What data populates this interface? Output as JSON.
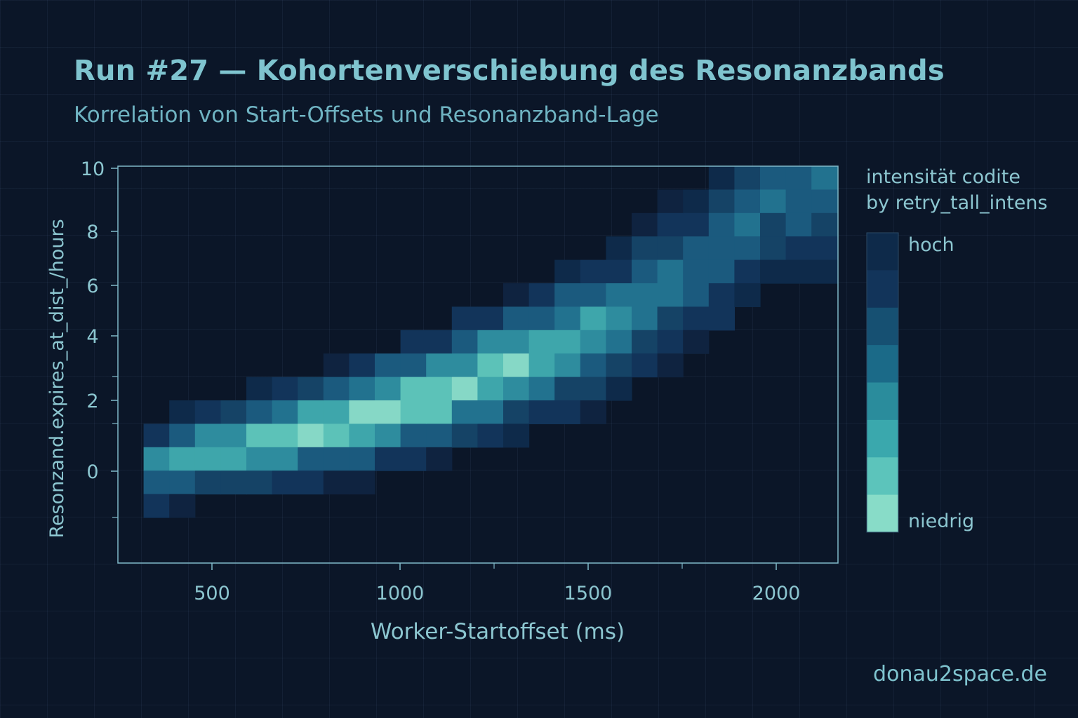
{
  "title": "Run #27 — Kohortenverschiebung des Resonanzbands",
  "subtitle": "Korrelation von Start-Offsets und Resonanzband-Lage",
  "watermark": "donau2space.de",
  "legend": {
    "title_line1": "intensität codite",
    "title_line2": "by retry_tall_intens",
    "high_label": "hoch",
    "low_label": "niedrig",
    "colors": [
      "#0e2a4a",
      "#12345a",
      "#165072",
      "#1b6a88",
      "#2a8c9c",
      "#3aa8ad",
      "#5cc4bb",
      "#88dcc8"
    ]
  },
  "colors": {
    "background": "#0b1628",
    "axis": "#7fb8c8",
    "text": "#8cc6d0",
    "title": "#7fc4cf"
  },
  "chart_data": {
    "type": "heatmap",
    "title": "Run #27 — Kohortenverschiebung des Resonanzbands",
    "xlabel": "Worker-Startoffset (ms)",
    "ylabel": "Resonzand.expires_at_dist_/hours",
    "x_ticks": [
      500,
      1000,
      1500,
      2000
    ],
    "y_ticks": [
      0,
      2,
      4,
      6,
      8,
      10
    ],
    "xlim": [
      250,
      2170
    ],
    "ylim": [
      -4,
      10
    ],
    "cell_width": 68,
    "cell_height": 1.0,
    "columns": 28,
    "rows": 17,
    "band": {
      "description": "diagonal ridge rising from low offset / low value to high offset / high value",
      "points": [
        {
          "x": 350,
          "y": 0.1
        },
        {
          "x": 500,
          "y": 0.6
        },
        {
          "x": 750,
          "y": 1.1
        },
        {
          "x": 1000,
          "y": 1.8
        },
        {
          "x": 1250,
          "y": 2.8
        },
        {
          "x": 1500,
          "y": 4.0
        },
        {
          "x": 1750,
          "y": 6.2
        },
        {
          "x": 2000,
          "y": 9.3
        }
      ]
    }
  }
}
